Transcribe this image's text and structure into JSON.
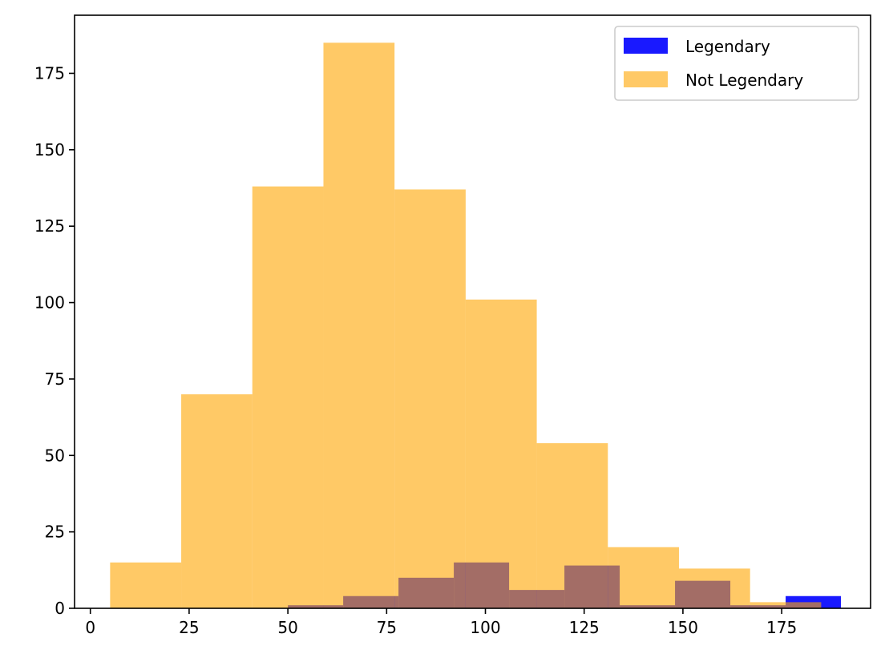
{
  "chart_data": {
    "type": "bar",
    "title": "",
    "xlabel": "",
    "ylabel": "",
    "xlim": [
      -4,
      197.5
    ],
    "ylim": [
      0,
      194
    ],
    "xticks": [
      0,
      25,
      50,
      75,
      100,
      125,
      150,
      175
    ],
    "yticks": [
      0,
      25,
      50,
      75,
      100,
      125,
      150,
      175
    ],
    "grid": false,
    "legend_position": "top-right",
    "series": [
      {
        "name": "Legendary",
        "color": "#0000ff",
        "opacity": 0.9,
        "bins": [
          [
            50,
            64,
            1
          ],
          [
            64,
            78,
            4
          ],
          [
            78,
            92,
            10
          ],
          [
            92,
            106,
            15
          ],
          [
            106,
            120,
            6
          ],
          [
            120,
            134,
            14
          ],
          [
            134,
            148,
            1
          ],
          [
            148,
            162,
            9
          ],
          [
            162,
            176,
            1
          ],
          [
            176,
            190,
            4
          ]
        ]
      },
      {
        "name": "Not Legendary",
        "color": "#ffa500",
        "opacity": 0.6,
        "bins": [
          [
            5,
            23,
            15
          ],
          [
            23,
            41,
            70
          ],
          [
            41,
            59,
            138
          ],
          [
            59,
            77,
            185
          ],
          [
            77,
            95,
            137
          ],
          [
            95,
            113,
            101
          ],
          [
            113,
            131,
            54
          ],
          [
            131,
            149,
            20
          ],
          [
            149,
            167,
            13
          ],
          [
            167,
            185,
            2
          ]
        ]
      }
    ]
  }
}
